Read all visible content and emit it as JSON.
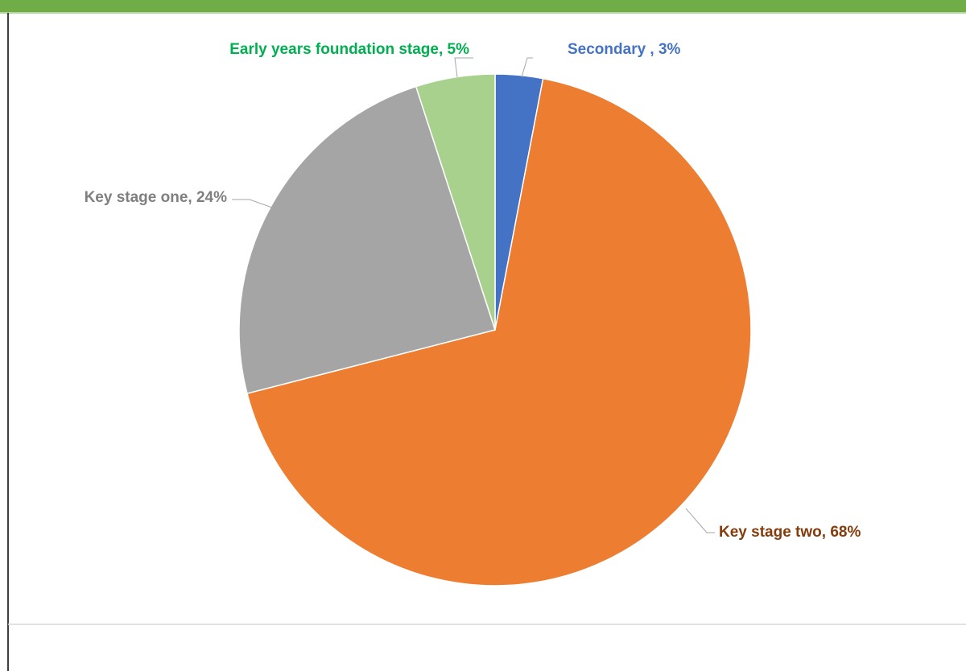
{
  "chart_data": {
    "type": "pie",
    "values": [
      3,
      68,
      24,
      5
    ],
    "value_labels": [
      "Secondary , 3%",
      "Key stage two, 68%",
      "Key stage one, 24%",
      "Early years foundation stage, 5%"
    ],
    "colors": [
      "#4472c4",
      "#ed7d31",
      "#a5a5a5",
      "#a9d18e"
    ],
    "label_colors": [
      "#4472c4",
      "#843c0c",
      "#7f7f7f",
      "#00b050"
    ]
  }
}
